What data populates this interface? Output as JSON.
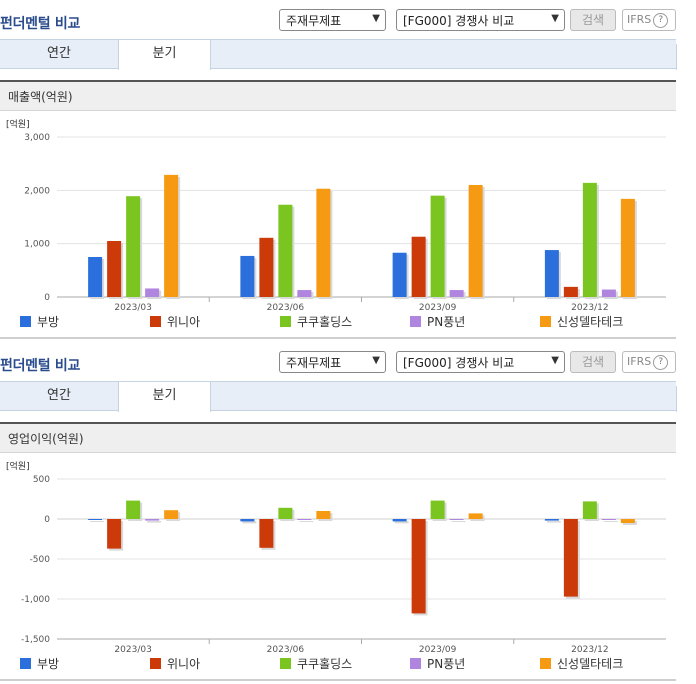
{
  "panels": [
    {
      "title": "펀더멘털 비교",
      "select1": "주재무제표",
      "select2": "[FG000] 경쟁사 비교",
      "search_label": "검색",
      "ifrs_label": "IFRS",
      "tabs": [
        {
          "label": "연간"
        },
        {
          "label": "분기"
        }
      ],
      "header": "매출액(억원)"
    },
    {
      "title": "펀더멘털 비교",
      "select1": "주재무제표",
      "select2": "[FG000] 경쟁사 비교",
      "search_label": "검색",
      "ifrs_label": "IFRS",
      "tabs": [
        {
          "label": "연간"
        },
        {
          "label": "분기"
        }
      ],
      "header": "영업이익(억원)"
    }
  ],
  "colors": [
    "#2a6fdb",
    "#cc3a0a",
    "#7ac520",
    "#b085e0",
    "#f59a12"
  ],
  "chart_data": [
    {
      "type": "bar",
      "unit_label": "[억원]",
      "categories": [
        "2023/03",
        "2023/06",
        "2023/09",
        "2023/12"
      ],
      "ylim": [
        0,
        3000
      ],
      "yticks": [
        0,
        1000,
        2000,
        3000
      ],
      "ytick_labels": [
        "0",
        "1,000",
        "2,000",
        "3,000"
      ],
      "grid": true,
      "legend_position": "bottom",
      "series": [
        {
          "name": "부방",
          "values": [
            750,
            770,
            830,
            880
          ]
        },
        {
          "name": "위니아",
          "values": [
            1050,
            1110,
            1130,
            190
          ]
        },
        {
          "name": "쿠쿠홀딩스",
          "values": [
            1890,
            1730,
            1900,
            2140
          ]
        },
        {
          "name": "PN풍년",
          "values": [
            160,
            130,
            130,
            140
          ]
        },
        {
          "name": "신성델타테크",
          "values": [
            2290,
            2030,
            2100,
            1840
          ]
        }
      ]
    },
    {
      "type": "bar",
      "unit_label": "[억원]",
      "categories": [
        "2023/03",
        "2023/06",
        "2023/09",
        "2023/12"
      ],
      "ylim": [
        -1500,
        500
      ],
      "yticks": [
        -1500,
        -1000,
        -500,
        0,
        500
      ],
      "ytick_labels": [
        "-1,500",
        "-1,000",
        "-500",
        "0",
        "500"
      ],
      "grid": true,
      "legend_position": "bottom",
      "series": [
        {
          "name": "부방",
          "values": [
            -10,
            -30,
            -30,
            -20
          ]
        },
        {
          "name": "위니아",
          "values": [
            -370,
            -360,
            -1180,
            -970
          ]
        },
        {
          "name": "쿠쿠홀딩스",
          "values": [
            230,
            140,
            230,
            220
          ]
        },
        {
          "name": "PN풍년",
          "values": [
            -20,
            -5,
            -5,
            -5
          ]
        },
        {
          "name": "신성델타테크",
          "values": [
            110,
            100,
            70,
            -50
          ]
        }
      ]
    }
  ]
}
